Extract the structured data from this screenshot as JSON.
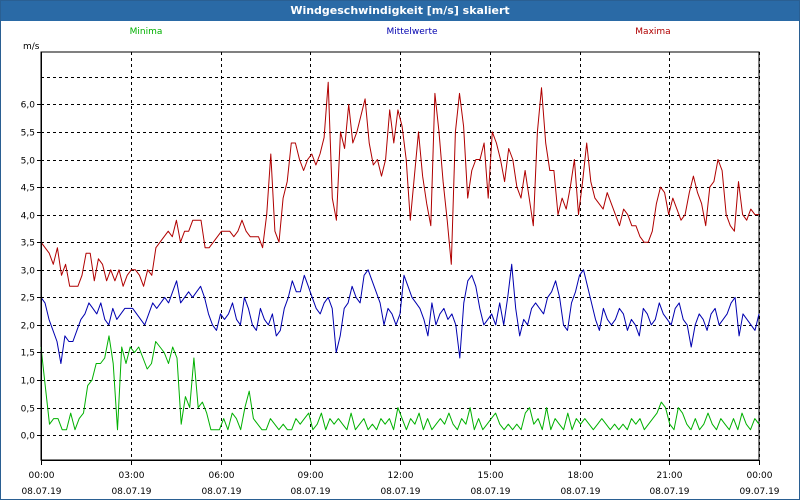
{
  "window": {
    "title": "Windgeschwindigkeit [m/s] skaliert"
  },
  "chart_data": {
    "type": "line",
    "ylabel": "m/s",
    "ylim": [
      -0.45,
      6.95
    ],
    "yticks": [
      0.0,
      0.5,
      1.0,
      1.5,
      2.0,
      2.5,
      3.0,
      3.5,
      4.0,
      4.5,
      5.0,
      5.5,
      6.0
    ],
    "ytick_labels": [
      "0,0",
      "0,5",
      "1,0",
      "1,5",
      "2,0",
      "2,5",
      "3,0",
      "3,5",
      "4,0",
      "4,5",
      "5,0",
      "5,5",
      "6,0"
    ],
    "xlim_hours": [
      0,
      24
    ],
    "x_unit": "hours since 08.07.19 00:00",
    "xticks_hours": [
      0,
      3,
      6,
      9,
      12,
      15,
      18,
      21,
      24
    ],
    "xtick_labels": [
      {
        "time": "00:00",
        "date": "08.07.19"
      },
      {
        "time": "03:00",
        "date": "08.07.19"
      },
      {
        "time": "06:00",
        "date": "08.07.19"
      },
      {
        "time": "09:00",
        "date": "08.07.19"
      },
      {
        "time": "12:00",
        "date": "08.07.19"
      },
      {
        "time": "15:00",
        "date": "08.07.19"
      },
      {
        "time": "18:00",
        "date": "08.07.19"
      },
      {
        "time": "21:00",
        "date": "08.07.19"
      },
      {
        "time": "00:00",
        "date": "09.07.19"
      }
    ],
    "grid": true,
    "legend_position": "top",
    "series": [
      {
        "name": "Minima",
        "color": "#00b000",
        "values": [
          1.6,
          0.9,
          0.2,
          0.3,
          0.3,
          0.1,
          0.1,
          0.4,
          0.1,
          0.3,
          0.4,
          0.9,
          1.0,
          1.3,
          1.3,
          1.4,
          1.8,
          1.3,
          0.1,
          1.6,
          1.3,
          1.6,
          1.5,
          1.6,
          1.4,
          1.2,
          1.3,
          1.7,
          1.6,
          1.5,
          1.3,
          1.6,
          1.4,
          0.2,
          0.7,
          0.5,
          1.4,
          0.5,
          0.6,
          0.4,
          0.1,
          0.1,
          0.1,
          0.3,
          0.1,
          0.4,
          0.3,
          0.1,
          0.5,
          0.8,
          0.3,
          0.2,
          0.1,
          0.1,
          0.3,
          0.2,
          0.1,
          0.2,
          0.1,
          0.1,
          0.3,
          0.2,
          0.3,
          0.4,
          0.1,
          0.2,
          0.4,
          0.1,
          0.3,
          0.2,
          0.3,
          0.2,
          0.1,
          0.4,
          0.1,
          0.2,
          0.3,
          0.1,
          0.2,
          0.1,
          0.3,
          0.2,
          0.3,
          0.1,
          0.5,
          0.3,
          0.1,
          0.3,
          0.2,
          0.4,
          0.1,
          0.3,
          0.1,
          0.2,
          0.3,
          0.2,
          0.4,
          0.2,
          0.1,
          0.3,
          0.2,
          0.5,
          0.1,
          0.3,
          0.1,
          0.2,
          0.3,
          0.4,
          0.2,
          0.1,
          0.2,
          0.1,
          0.2,
          0.1,
          0.4,
          0.5,
          0.2,
          0.3,
          0.1,
          0.5,
          0.1,
          0.3,
          0.2,
          0.1,
          0.4,
          0.1,
          0.3,
          0.2,
          0.3,
          0.2,
          0.1,
          0.2,
          0.3,
          0.2,
          0.1,
          0.2,
          0.1,
          0.2,
          0.1,
          0.3,
          0.2,
          0.3,
          0.1,
          0.2,
          0.3,
          0.4,
          0.6,
          0.5,
          0.2,
          0.1,
          0.5,
          0.4,
          0.2,
          0.1,
          0.3,
          0.1,
          0.2,
          0.4,
          0.2,
          0.1,
          0.3,
          0.2,
          0.1,
          0.3,
          0.1,
          0.4,
          0.2,
          0.1,
          0.3,
          0.2
        ]
      },
      {
        "name": "Mittelwerte",
        "color": "#0000b0",
        "values": [
          2.5,
          2.4,
          2.1,
          1.9,
          1.7,
          1.3,
          1.8,
          1.7,
          1.7,
          1.9,
          2.1,
          2.2,
          2.4,
          2.3,
          2.2,
          2.4,
          2.1,
          2.0,
          2.3,
          2.1,
          2.2,
          2.3,
          2.3,
          2.3,
          2.2,
          2.1,
          2.0,
          2.2,
          2.4,
          2.3,
          2.4,
          2.5,
          2.4,
          2.6,
          2.8,
          2.4,
          2.5,
          2.6,
          2.5,
          2.6,
          2.7,
          2.5,
          2.2,
          2.0,
          1.9,
          2.2,
          2.1,
          2.2,
          2.4,
          2.1,
          2.0,
          2.5,
          2.3,
          2.0,
          1.9,
          2.3,
          2.1,
          2.0,
          2.2,
          1.8,
          1.9,
          2.3,
          2.5,
          2.8,
          2.6,
          2.6,
          2.9,
          2.7,
          2.5,
          2.3,
          2.2,
          2.4,
          2.5,
          2.3,
          1.5,
          1.8,
          2.3,
          2.4,
          2.7,
          2.5,
          2.4,
          2.9,
          3.0,
          2.8,
          2.6,
          2.4,
          2.0,
          2.3,
          2.2,
          2.0,
          2.2,
          2.9,
          2.7,
          2.5,
          2.4,
          2.3,
          2.1,
          1.8,
          2.4,
          2.0,
          2.2,
          2.3,
          2.1,
          2.2,
          2.0,
          1.4,
          2.4,
          2.8,
          2.9,
          2.7,
          2.3,
          2.0,
          2.1,
          2.2,
          2.0,
          2.4,
          2.0,
          2.5,
          3.1,
          2.3,
          1.8,
          2.1,
          2.0,
          2.3,
          2.4,
          2.3,
          2.2,
          2.5,
          2.6,
          2.8,
          2.5,
          2.0,
          1.9,
          2.4,
          2.6,
          2.9,
          3.0,
          2.7,
          2.4,
          2.1,
          1.9,
          2.3,
          2.1,
          2.0,
          2.1,
          2.3,
          2.2,
          1.9,
          2.1,
          2.0,
          1.8,
          2.3,
          2.2,
          2.0,
          2.1,
          2.4,
          2.2,
          2.1,
          2.0,
          2.3,
          2.4,
          2.1,
          2.0,
          1.6,
          2.0,
          2.2,
          2.1,
          1.9,
          2.2,
          2.3,
          2.0,
          2.1,
          2.2,
          2.4,
          2.5,
          1.8,
          2.2,
          2.1,
          2.0,
          1.9,
          2.2
        ]
      },
      {
        "name": "Maxima",
        "color": "#b00000",
        "values": [
          3.5,
          3.4,
          3.3,
          3.1,
          3.4,
          2.9,
          3.1,
          2.7,
          2.7,
          2.7,
          2.9,
          3.3,
          3.3,
          2.8,
          3.2,
          3.1,
          2.8,
          3.0,
          2.8,
          3.0,
          2.7,
          2.9,
          3.0,
          3.0,
          2.9,
          2.7,
          3.0,
          2.9,
          3.4,
          3.5,
          3.6,
          3.7,
          3.6,
          3.9,
          3.5,
          3.7,
          3.7,
          3.9,
          3.9,
          3.9,
          3.4,
          3.4,
          3.5,
          3.6,
          3.7,
          3.7,
          3.7,
          3.6,
          3.7,
          3.9,
          3.7,
          3.6,
          3.6,
          3.6,
          3.4,
          4.0,
          5.1,
          3.7,
          3.5,
          4.3,
          4.6,
          5.3,
          5.3,
          5.0,
          4.8,
          5.0,
          5.1,
          4.9,
          5.1,
          5.4,
          6.4,
          4.3,
          3.9,
          5.5,
          5.2,
          6.0,
          5.3,
          5.5,
          5.8,
          6.1,
          5.3,
          4.9,
          5.0,
          4.7,
          5.0,
          5.9,
          5.3,
          5.9,
          5.6,
          5.0,
          3.9,
          4.7,
          5.5,
          4.7,
          4.2,
          3.8,
          6.2,
          5.5,
          4.6,
          3.9,
          3.1,
          5.5,
          6.2,
          5.6,
          4.3,
          4.8,
          5.0,
          5.0,
          5.3,
          4.3,
          5.5,
          5.3,
          5.0,
          4.6,
          5.2,
          5.0,
          4.5,
          4.3,
          4.8,
          4.3,
          3.8,
          5.5,
          6.3,
          5.3,
          4.8,
          4.8,
          4.0,
          4.3,
          4.1,
          4.5,
          5.0,
          4.0,
          4.6,
          5.3,
          4.6,
          4.3,
          4.2,
          4.1,
          4.4,
          4.2,
          4.0,
          3.8,
          4.1,
          4.0,
          3.8,
          3.8,
          3.6,
          3.5,
          3.5,
          3.7,
          4.2,
          4.5,
          4.4,
          4.0,
          4.3,
          4.1,
          3.9,
          4.0,
          4.4,
          4.7,
          4.4,
          4.2,
          3.8,
          4.5,
          4.6,
          5.0,
          4.8,
          4.0,
          3.8,
          3.7,
          4.6,
          4.0,
          3.9,
          4.1,
          4.0,
          4.0
        ]
      }
    ]
  }
}
